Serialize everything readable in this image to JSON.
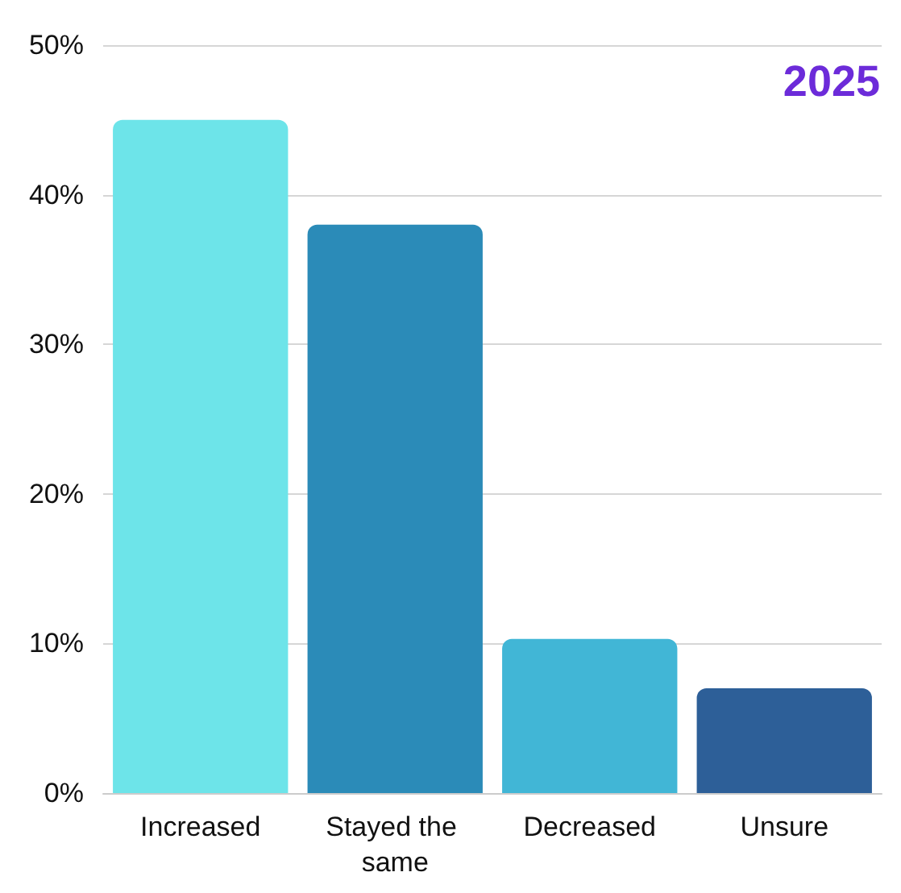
{
  "chart_data": {
    "type": "bar",
    "title": "2025",
    "categories": [
      "Increased",
      "Stayed the same",
      "Decreased",
      "Unsure"
    ],
    "values": [
      45,
      38,
      10.3,
      7
    ],
    "colors": [
      "#6de4e9",
      "#2b8bb8",
      "#41b6d6",
      "#2d5f98"
    ],
    "ylim": [
      0,
      50
    ],
    "yticks": [
      {
        "value": 0,
        "label": "0%"
      },
      {
        "value": 10,
        "label": "10%"
      },
      {
        "value": 20,
        "label": "20%"
      },
      {
        "value": 30,
        "label": "30%"
      },
      {
        "value": 40,
        "label": "40%"
      },
      {
        "value": 50,
        "label": "50%"
      }
    ],
    "grid": "y"
  }
}
